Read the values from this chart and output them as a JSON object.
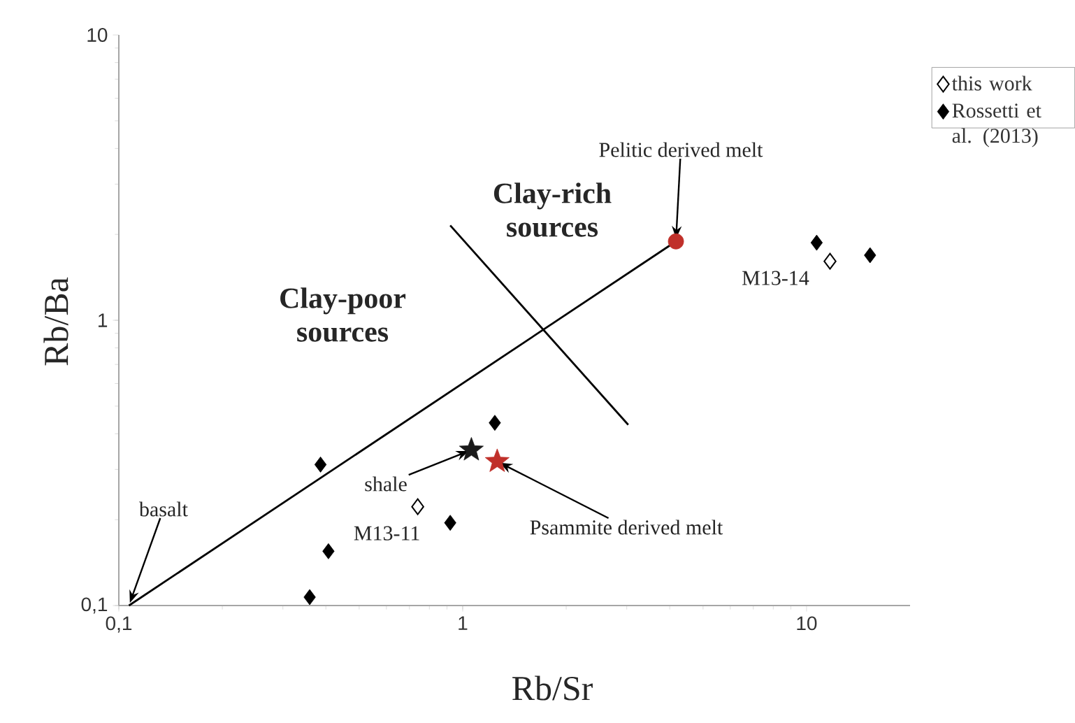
{
  "chart_data": {
    "type": "scatter",
    "xlabel": "Rb/Sr",
    "ylabel": "Rb/Ba",
    "log": "xy",
    "xlim": [
      0.1,
      20
    ],
    "ylim": [
      0.1,
      10
    ],
    "xticks": [
      {
        "value": 0.1,
        "label": "0,1"
      },
      1,
      10
    ],
    "yticks": [
      {
        "value": 0.1,
        "label": "0,1"
      },
      1,
      10
    ],
    "legend": "top right",
    "series": [
      {
        "name": "this work",
        "color": "#ffffff",
        "marker": "diamond",
        "x": [
          0.74,
          11.7
        ],
        "values": [
          0.222,
          1.61
        ]
      },
      {
        "name": "Rossetti et al. (2013)",
        "color": "#000000",
        "marker": "diamond",
        "x": [
          0.386,
          0.407,
          0.359,
          0.92,
          1.24,
          10.7,
          15.3
        ],
        "values": [
          0.312,
          0.155,
          0.107,
          0.195,
          0.437,
          1.87,
          1.69
        ]
      },
      {
        "color": "#1a1a1a",
        "marker": "star",
        "x": [
          1.06
        ],
        "values": [
          0.351
        ]
      },
      {
        "color": "#c0302a",
        "marker": "star",
        "x": [
          1.26
        ],
        "values": [
          0.32
        ]
      },
      {
        "color": "#c0302a",
        "marker": "circle",
        "x": [
          4.17
        ],
        "values": [
          1.89
        ]
      },
      {
        "type": "line",
        "color": "#000000",
        "marker": "none",
        "x": [
          0.107,
          4.17
        ],
        "values": [
          0.1,
          1.89
        ]
      },
      {
        "type": "line",
        "color": "#000000",
        "marker": "none",
        "x": [
          0.92,
          3.03
        ],
        "values": [
          2.15,
          0.43
        ]
      }
    ],
    "annotations": [
      {
        "text": "Pelitic derived melt",
        "x": 4.17,
        "y": 1.89
      },
      "Clay-rich sources",
      "Clay-poor sources",
      {
        "text": "M13-14",
        "x": 11.7,
        "y": 1.61
      },
      {
        "text": "shale",
        "x": 1.06,
        "y": 0.351
      },
      {
        "text": "M13-11",
        "x": 0.74,
        "y": 0.222
      },
      {
        "text": "basalt",
        "x": 0.107,
        "y": 0.1
      },
      {
        "text": "Psammite derived melt",
        "x": 1.26,
        "y": 0.32
      }
    ]
  }
}
